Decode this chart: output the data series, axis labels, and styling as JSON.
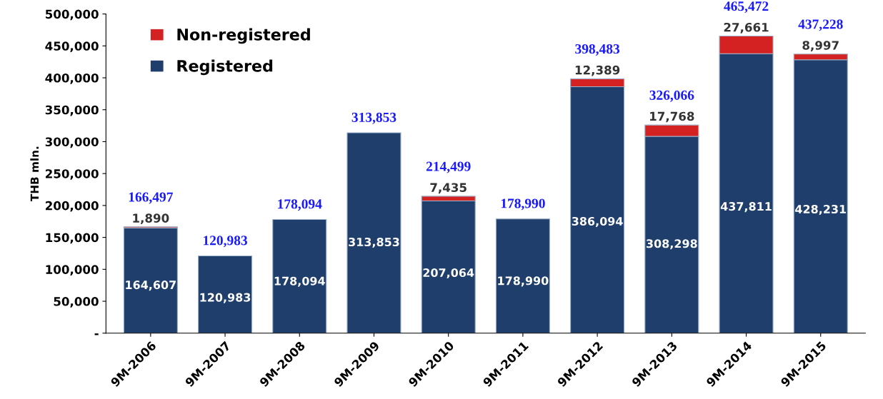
{
  "chart_data": {
    "type": "bar",
    "stacked": true,
    "ylabel": "THB mln.",
    "categories": [
      "9M-2006",
      "9M-2007",
      "9M-2008",
      "9M-2009",
      "9M-2010",
      "9M-2011",
      "9M-2012",
      "9M-2013",
      "9M-2014",
      "9M-2015"
    ],
    "series": [
      {
        "name": "Registered",
        "color": "#1f3e6c",
        "values": [
          164607,
          120983,
          178094,
          313853,
          207064,
          178990,
          386094,
          308298,
          437811,
          428231
        ],
        "value_labels": [
          "164,607",
          "120,983",
          "178,094",
          "313,853",
          "207,064",
          "178,990",
          "386,094",
          "308,298",
          "437,811",
          "428,231"
        ]
      },
      {
        "name": "Non-registered",
        "color": "#d42222",
        "values": [
          1890,
          null,
          null,
          null,
          7435,
          null,
          12389,
          17768,
          27661,
          8997
        ],
        "value_labels": [
          "1,890",
          null,
          null,
          null,
          "7,435",
          null,
          "12,389",
          "17,768",
          "27,661",
          "8,997"
        ]
      }
    ],
    "totals": [
      "166,497",
      "120,983",
      "178,094",
      "313,853",
      "214,499",
      "178,990",
      "398,483",
      "326,066",
      "465,472",
      "437,228"
    ],
    "ylim": [
      0,
      500000
    ],
    "yticks": [
      {
        "value": 0,
        "label": "-"
      },
      {
        "value": 50000,
        "label": "50,000"
      },
      {
        "value": 100000,
        "label": "100,000"
      },
      {
        "value": 150000,
        "label": "150,000"
      },
      {
        "value": 200000,
        "label": "200,000"
      },
      {
        "value": 250000,
        "label": "250,000"
      },
      {
        "value": 300000,
        "label": "300,000"
      },
      {
        "value": 350000,
        "label": "350,000"
      },
      {
        "value": 400000,
        "label": "400,000"
      },
      {
        "value": 450000,
        "label": "450,000"
      },
      {
        "value": 500000,
        "label": "500,000"
      }
    ],
    "grid": false,
    "legend": "top left"
  }
}
